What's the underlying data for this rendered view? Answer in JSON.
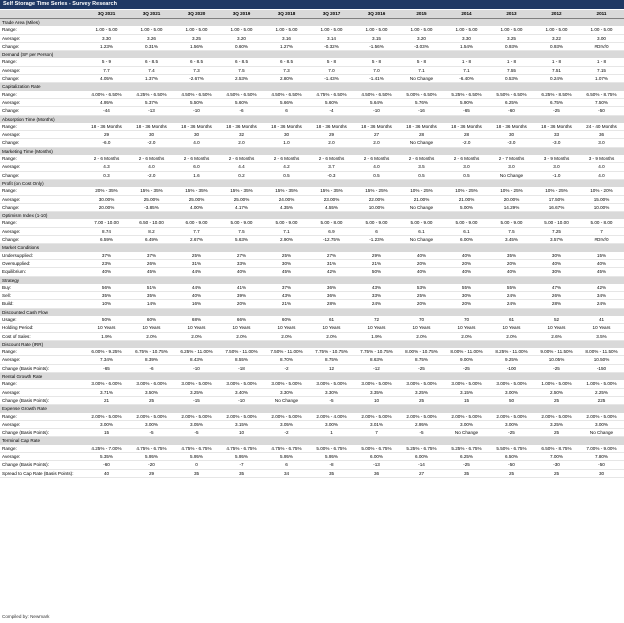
{
  "title": "Self Storage Time Series - Survey Research",
  "footer": "Compiled by: Newmark",
  "columns": [
    "3Q 2021",
    "3Q 2021",
    "3Q 2020",
    "3Q 2019",
    "3Q 2018",
    "3Q 2017",
    "3Q 2016",
    "2015",
    "2014",
    "2013",
    "2012",
    "2011"
  ],
  "sections": [
    {
      "title": "Trade Area (Miles)",
      "rows": [
        {
          "label": "Range:",
          "values": [
            "1.00 - 5.00",
            "1.00 - 5.00",
            "1.00 - 5.00",
            "1.00 - 5.00",
            "1.00 - 5.00",
            "1.00 - 5.00",
            "1.00 - 5.00",
            "1.00 - 5.00",
            "1.00 - 5.00",
            "1.00 - 5.00",
            "1.00 - 5.00",
            "1.00 - 5.00"
          ]
        },
        {
          "label": "Average:",
          "values": [
            "3.30",
            "3.26",
            "3.25",
            "3.20",
            "3.16",
            "3.14",
            "3.15",
            "3.20",
            "3.30",
            "3.25",
            "3.22",
            "3.00"
          ]
        },
        {
          "label": "Change:",
          "values": [
            "1.23%",
            "0.31%",
            "1.56%",
            "0.60%",
            "1.27%",
            "-0.32%",
            "-1.56%",
            "-3.03%",
            "1.54%",
            "0.93%",
            "0.93%",
            "#DIV/0"
          ]
        }
      ]
    },
    {
      "title": "Demand (SF per Person)",
      "rows": [
        {
          "label": "Range:",
          "values": [
            "5 - 9",
            "6 - 8.5",
            "6 - 8.5",
            "6 - 8.5",
            "6 - 8.5",
            "5 - 8",
            "5 - 8",
            "5 - 8",
            "1 - 8",
            "1 - 8",
            "1 - 8",
            "1 - 8"
          ]
        },
        {
          "label": "Average:",
          "values": [
            "7.7",
            "7.4",
            "7.3",
            "7.5",
            "7.3",
            "7.0",
            "7.0",
            "7.1",
            "7.1",
            "7.55",
            "7.51",
            "7.15"
          ]
        },
        {
          "label": "Change:",
          "values": [
            "4.05%",
            "1.37%",
            "-2.67%",
            "2.53%",
            "2.80%",
            "-1.43%",
            "-1.41%",
            "No Change",
            "-6.40%",
            "0.53%",
            "0.24%",
            "1.07%"
          ]
        }
      ]
    },
    {
      "title": "Capitalization Rate",
      "rows": [
        {
          "label": "Range:",
          "values": [
            "4.00% - 6.50%",
            "4.25% - 6.50%",
            "4.50% - 6.50%",
            "4.50% - 6.50%",
            "4.50% - 6.50%",
            "4.75% - 6.50%",
            "4.50% - 6.50%",
            "5.00% - 6.50%",
            "5.25% - 6.50%",
            "5.50% - 6.50%",
            "6.25% - 8.50%",
            "6.50% - 8.75%"
          ]
        },
        {
          "label": "Average:",
          "values": [
            "4.95%",
            "5.37%",
            "5.50%",
            "5.60%",
            "5.66%",
            "5.60%",
            "5.64%",
            "5.76%",
            "5.90%",
            "6.25%",
            "6.75%",
            "7.50%"
          ]
        },
        {
          "label": "Change:",
          "values": [
            "-44",
            "-13",
            "-10",
            "-6",
            "6",
            "-4",
            "-10",
            "-16",
            "-65",
            "-60",
            "-25",
            "-50"
          ]
        }
      ]
    },
    {
      "title": "Absorption Time (Months)",
      "rows": [
        {
          "label": "Range:",
          "values": [
            "18 - 36 Months",
            "18 - 36 Months",
            "18 - 36 Months",
            "18 - 36 Months",
            "18 - 36 Months",
            "18 - 36 Months",
            "18 - 36 Months",
            "18 - 36 Months",
            "18 - 36 Months",
            "18 - 36 Months",
            "18 - 36 Months",
            "24 - 40 Months"
          ]
        },
        {
          "label": "Average:",
          "values": [
            "29",
            "30",
            "30",
            "32",
            "30",
            "29",
            "27",
            "28",
            "28",
            "30",
            "33",
            "36"
          ]
        },
        {
          "label": "Change:",
          "values": [
            "-6.0",
            "-2.0",
            "4.0",
            "2.0",
            "1.0",
            "2.0",
            "2.0",
            "No Change",
            "-2.0",
            "-3.0",
            "-3.0",
            "3.0"
          ]
        }
      ]
    },
    {
      "title": "Marketing Time (Months)",
      "rows": [
        {
          "label": "Range:",
          "values": [
            "2 - 6 Months",
            "2 - 6 Months",
            "2 - 6 Months",
            "2 - 6 Months",
            "2 - 6 Months",
            "2 - 6 Months",
            "2 - 6 Months",
            "2 - 6 Months",
            "2 - 6 Months",
            "2 - 7 Months",
            "3 - 9 Months",
            "3 - 9 Months"
          ]
        },
        {
          "label": "Average:",
          "values": [
            "4.3",
            "4.0",
            "6.0",
            "4.4",
            "4.2",
            "3.7",
            "4.0",
            "3.5",
            "3.0",
            "3.0",
            "3.0",
            "4.0"
          ]
        },
        {
          "label": "Change:",
          "values": [
            "0.3",
            "-2.0",
            "1.6",
            "0.2",
            "0.5",
            "-0.3",
            "0.5",
            "0.5",
            "0.5",
            "No Change",
            "-1.0",
            "4.0"
          ]
        }
      ]
    },
    {
      "title": "Profit (on Cost Only)",
      "rows": [
        {
          "label": "Range:",
          "values": [
            "20% - 35%",
            "15% - 35%",
            "15% - 35%",
            "15% - 35%",
            "15% - 35%",
            "15% - 35%",
            "15% - 25%",
            "10% - 25%",
            "10% - 25%",
            "10% - 25%",
            "10% - 25%",
            "10% - 20%"
          ]
        },
        {
          "label": "Average:",
          "values": [
            "30.00%",
            "25.00%",
            "25.00%",
            "25.00%",
            "24.00%",
            "23.00%",
            "22.00%",
            "21.00%",
            "21.00%",
            "20.00%",
            "17.50%",
            "15.00%"
          ]
        },
        {
          "label": "Change:",
          "values": [
            "20.00%",
            "-3.85%",
            "4.00%",
            "4.17%",
            "4.35%",
            "4.55%",
            "10.00%",
            "No Change",
            "5.00%",
            "14.29%",
            "16.67%",
            "10.00%"
          ]
        }
      ]
    },
    {
      "title": "Optimism Index (1-10)",
      "rows": [
        {
          "label": "Range:",
          "values": [
            "7.00 - 10.00",
            "6.50 - 10.00",
            "6.00 - 9.00",
            "5.00 - 9.00",
            "5.00 - 9.00",
            "5.00 - 8.00",
            "5.00 - 9.00",
            "5.00 - 9.00",
            "5.00 - 9.00",
            "5.00 - 9.00",
            "5.00 - 10.00",
            "5.00 - 8.00"
          ]
        },
        {
          "label": "Average:",
          "values": [
            "8.74",
            "8.2",
            "7.7",
            "7.5",
            "7.1",
            "6.9",
            "6",
            "6.1",
            "6.1",
            "7.5",
            "7.25",
            "7"
          ]
        },
        {
          "label": "Change:",
          "values": [
            "6.59%",
            "6.49%",
            "2.67%",
            "5.63%",
            "2.90%",
            "-12.75%",
            "-1.23%",
            "No Change",
            "6.00%",
            "3.45%",
            "3.57%",
            "#DIV/0"
          ]
        }
      ]
    },
    {
      "title": "Market Conditions",
      "rows": [
        {
          "label": "Undersupplied:",
          "values": [
            "37%",
            "37%",
            "25%",
            "27%",
            "25%",
            "27%",
            "29%",
            "40%",
            "40%",
            "35%",
            "30%",
            "15%"
          ]
        },
        {
          "label": "Oversupplied:",
          "values": [
            "23%",
            "26%",
            "31%",
            "33%",
            "30%",
            "31%",
            "21%",
            "20%",
            "20%",
            "20%",
            "40%",
            "40%"
          ]
        },
        {
          "label": "Equilibrium:",
          "values": [
            "40%",
            "45%",
            "44%",
            "40%",
            "45%",
            "42%",
            "50%",
            "40%",
            "40%",
            "40%",
            "30%",
            "45%"
          ]
        }
      ]
    },
    {
      "title": "Strategy",
      "rows": [
        {
          "label": "Buy:",
          "values": [
            "56%",
            "51%",
            "44%",
            "41%",
            "37%",
            "36%",
            "43%",
            "53%",
            "55%",
            "55%",
            "47%",
            "42%"
          ]
        },
        {
          "label": "Sell:",
          "values": [
            "35%",
            "35%",
            "40%",
            "39%",
            "43%",
            "36%",
            "33%",
            "25%",
            "30%",
            "24%",
            "26%",
            "34%"
          ]
        },
        {
          "label": "Build:",
          "values": [
            "10%",
            "14%",
            "16%",
            "20%",
            "21%",
            "28%",
            "24%",
            "20%",
            "20%",
            "24%",
            "28%",
            "24%"
          ]
        }
      ]
    },
    {
      "title": "Discounted Cash Flow",
      "rows": [
        {
          "label": "Usage:",
          "values": [
            "50%",
            "60%",
            "68%",
            "66%",
            "60%",
            "61",
            "72",
            "70",
            "70",
            "61",
            "52",
            "41"
          ]
        },
        {
          "label": "Holding Period:",
          "values": [
            "10 Years",
            "10 Years",
            "10 Years",
            "10 Years",
            "10 Years",
            "10 Years",
            "10 Years",
            "10 Years",
            "10 Years",
            "10 Years",
            "10 Years",
            "10 Years"
          ]
        },
        {
          "label": "Cost of Sales:",
          "values": [
            "1.9%",
            "2.0%",
            "2.0%",
            "2.0%",
            "2.0%",
            "2.0%",
            "1.9%",
            "2.0%",
            "2.0%",
            "2.0%",
            "2.6%",
            "3.5%"
          ]
        }
      ]
    },
    {
      "title": "Discount Rate (IRR)",
      "rows": [
        {
          "label": "Range:",
          "values": [
            "6.00% - 9.25%",
            "6.75% - 10.75%",
            "6.25% - 11.00%",
            "7.50% - 11.00%",
            "7.50% - 11.00%",
            "7.75% - 10.75%",
            "7.75% - 10.75%",
            "8.00% - 10.75%",
            "8.00% - 11.00%",
            "8.25% - 11.00%",
            "9.00% - 11.50%",
            "8.00% - 11.50%"
          ]
        },
        {
          "label": "Average:",
          "values": [
            "7.34%",
            "8.39%",
            "8.43%",
            "8.55%",
            "8.70%",
            "8.75%",
            "8.63%",
            "8.75%",
            "9.00%",
            "9.25%",
            "10.05%",
            "10.50%"
          ]
        },
        {
          "label": "Change (Basis Points):",
          "values": [
            "-65",
            "-6",
            "-10",
            "-18",
            "-2",
            "12",
            "-12",
            "-25",
            "-25",
            "-100",
            "-25",
            "-150"
          ]
        }
      ]
    },
    {
      "title": "Rental Growth Rate",
      "rows": [
        {
          "label": "Range:",
          "values": [
            "3.00% - 6.00%",
            "3.00% - 6.00%",
            "3.00% - 5.00%",
            "3.00% - 5.00%",
            "3.00% - 5.00%",
            "3.00% - 5.00%",
            "3.00% - 5.00%",
            "3.00% - 5.00%",
            "3.00% - 5.00%",
            "3.00% - 5.00%",
            "1.00% - 5.00%",
            "1.00% - 5.00%"
          ]
        },
        {
          "label": "Average:",
          "values": [
            "3.71%",
            "3.50%",
            "3.25%",
            "3.40%",
            "3.30%",
            "3.30%",
            "3.35%",
            "3.25%",
            "3.15%",
            "3.00%",
            "2.50%",
            "2.25%"
          ]
        },
        {
          "label": "Change (Basis Points):",
          "values": [
            "21",
            "25",
            "-15",
            "-10",
            "No Change",
            "-5",
            "10",
            "25",
            "15",
            "50",
            "25",
            "225"
          ]
        }
      ]
    },
    {
      "title": "Expense Growth Rate",
      "rows": [
        {
          "label": "Range:",
          "values": [
            "2.00% - 5.00%",
            "2.00% - 5.00%",
            "2.00% - 5.00%",
            "2.00% - 5.00%",
            "2.00% - 5.00%",
            "2.00% - 4.00%",
            "2.00% - 5.00%",
            "2.00% - 5.00%",
            "2.00% - 5.00%",
            "2.00% - 5.00%",
            "2.00% - 5.00%",
            "2.00% - 5.00%"
          ]
        },
        {
          "label": "Average:",
          "values": [
            "3.00%",
            "3.00%",
            "3.05%",
            "3.15%",
            "3.05%",
            "3.00%",
            "3.01%",
            "2.95%",
            "3.00%",
            "3.00%",
            "3.25%",
            "3.00%"
          ]
        },
        {
          "label": "Change (Basis Points):",
          "values": [
            "15",
            "-5",
            "-5",
            "10",
            "-2",
            "1",
            "7",
            "-5",
            "No Change",
            "-25",
            "25",
            "No Change"
          ]
        }
      ]
    },
    {
      "title": "Terminal Cap Rate",
      "rows": [
        {
          "label": "Range:",
          "values": [
            "4.25% - 7.00%",
            "4.75% - 6.75%",
            "4.75% - 6.75%",
            "4.75% - 6.75%",
            "4.75% - 6.75%",
            "5.00% - 6.75%",
            "5.00% - 6.75%",
            "5.25% - 6.75%",
            "5.25% - 6.75%",
            "5.50% - 6.75%",
            "6.50% - 8.75%",
            "7.00% - 9.00%"
          ]
        },
        {
          "label": "Average:",
          "values": [
            "5.35%",
            "5.95%",
            "5.95%",
            "5.95%",
            "5.95%",
            "5.95%",
            "6.00%",
            "6.00%",
            "6.25%",
            "6.50%",
            "7.00%",
            "7.80%"
          ]
        },
        {
          "label": "Change (Basis Points):",
          "values": [
            "-60",
            "-20",
            "0",
            "-7",
            "6",
            "-8",
            "-13",
            "-14",
            "-25",
            "-50",
            "-30",
            "-50"
          ]
        },
        {
          "label": "Spread to Cap Rate (Basis Points):",
          "values": [
            "40",
            "29",
            "35",
            "35",
            "34",
            "35",
            "36",
            "27",
            "35",
            "25",
            "25",
            "30"
          ]
        }
      ]
    }
  ]
}
